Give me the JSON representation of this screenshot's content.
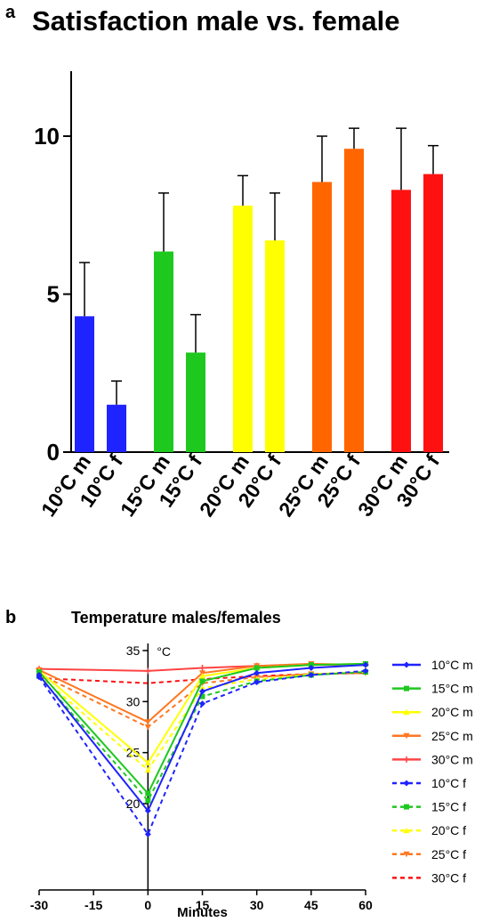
{
  "chart_data": [
    {
      "panel": "a",
      "type": "bar",
      "title": "Satisfaction male vs. female",
      "xlabel": "",
      "ylabel": "",
      "ylim": [
        0,
        12
      ],
      "yticks": [
        0,
        5,
        10
      ],
      "categories": [
        "10°C m",
        "10°C f",
        "15°C m",
        "15°C f",
        "20°C m",
        "20°C f",
        "25°C m",
        "25°C f",
        "30°C m",
        "30°C f"
      ],
      "values": [
        4.3,
        1.5,
        6.35,
        3.15,
        7.8,
        6.7,
        8.55,
        9.6,
        8.3,
        8.8
      ],
      "errors": [
        1.7,
        0.75,
        1.85,
        1.2,
        0.95,
        1.5,
        1.45,
        0.65,
        1.95,
        0.9
      ],
      "colors": [
        "#1f23ff",
        "#1f23ff",
        "#1ec81e",
        "#1ec81e",
        "#ffff00",
        "#ffff00",
        "#ff6600",
        "#ff6600",
        "#ff1111",
        "#ff1111"
      ]
    },
    {
      "panel": "b",
      "type": "line",
      "title": "Temperature males/females",
      "xlabel": "Minutes",
      "ylabel": "°C",
      "x": [
        -30,
        0,
        15,
        30,
        45,
        60
      ],
      "xticks": [
        -30,
        -15,
        0,
        15,
        30,
        45,
        60
      ],
      "yticks": [
        20,
        25,
        30,
        35
      ],
      "xlim": [
        -30,
        60
      ],
      "ylim": [
        14,
        35
      ],
      "legend_position": "right",
      "series": [
        {
          "name": "10°C m",
          "color": "#1f23ff",
          "dash": false,
          "marker": "diamond",
          "values": [
            32.6,
            19.3,
            31.0,
            32.8,
            33.3,
            33.6
          ]
        },
        {
          "name": "15°C m",
          "color": "#1ec81e",
          "dash": false,
          "marker": "square",
          "values": [
            32.9,
            21.0,
            32.0,
            33.3,
            33.6,
            33.7
          ]
        },
        {
          "name": "20°C m",
          "color": "#ffff00",
          "dash": false,
          "marker": "triangle",
          "values": [
            33.0,
            24.0,
            32.5,
            33.3,
            33.6,
            33.7
          ]
        },
        {
          "name": "25°C m",
          "color": "#ff7722",
          "dash": false,
          "marker": "triangle-down",
          "values": [
            33.1,
            28.0,
            32.8,
            33.5,
            33.7,
            33.6
          ]
        },
        {
          "name": "30°C m",
          "color": "#ff4444",
          "dash": false,
          "marker": "plus",
          "values": [
            33.2,
            33.0,
            33.3,
            33.5,
            33.6,
            33.6
          ]
        },
        {
          "name": "10°C f",
          "color": "#1f23ff",
          "dash": true,
          "marker": "diamond",
          "values": [
            32.4,
            17.0,
            29.8,
            31.9,
            32.6,
            33.0
          ]
        },
        {
          "name": "15°C f",
          "color": "#1ec81e",
          "dash": true,
          "marker": "square",
          "values": [
            32.5,
            20.3,
            30.5,
            32.0,
            32.6,
            32.9
          ]
        },
        {
          "name": "20°C f",
          "color": "#ffff00",
          "dash": true,
          "marker": "triangle",
          "values": [
            32.6,
            23.3,
            31.3,
            32.2,
            32.7,
            32.9
          ]
        },
        {
          "name": "25°C f",
          "color": "#ff7722",
          "dash": true,
          "marker": "triangle-down",
          "values": [
            32.7,
            27.5,
            31.8,
            32.4,
            32.7,
            32.8
          ]
        },
        {
          "name": "30°C f",
          "color": "#ff1111",
          "dash": true,
          "marker": "none",
          "values": [
            32.3,
            31.8,
            32.2,
            32.5,
            32.7,
            32.8
          ]
        }
      ]
    }
  ]
}
